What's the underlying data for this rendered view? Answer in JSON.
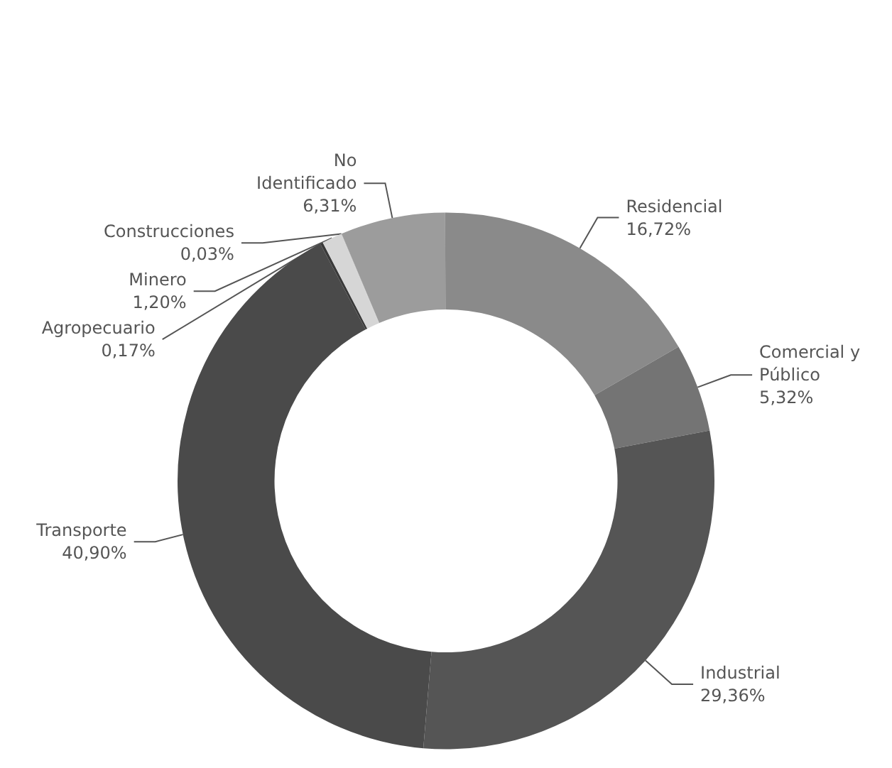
{
  "chart_data": {
    "type": "donut",
    "categories": [
      "Construcciones",
      "No\nIdentificado",
      "Residencial",
      "Comercial y\nPúblico",
      "Industrial",
      "Transporte",
      "Agropecuario",
      "Minero"
    ],
    "values": [
      0.03,
      6.31,
      16.72,
      5.32,
      29.36,
      40.9,
      0.17,
      1.2
    ],
    "value_labels": [
      "0,03%",
      "6,31%",
      "16,72%",
      "5,32%",
      "29,36%",
      "40,90%",
      "0,17%",
      "1,20%"
    ],
    "colors": [
      "#b8b8b8",
      "#9c9c9c",
      "#8a8a8a",
      "#747474",
      "#555555",
      "#4a4a4a",
      "#3a3a3a",
      "#d6d6d6"
    ],
    "legend": false
  }
}
